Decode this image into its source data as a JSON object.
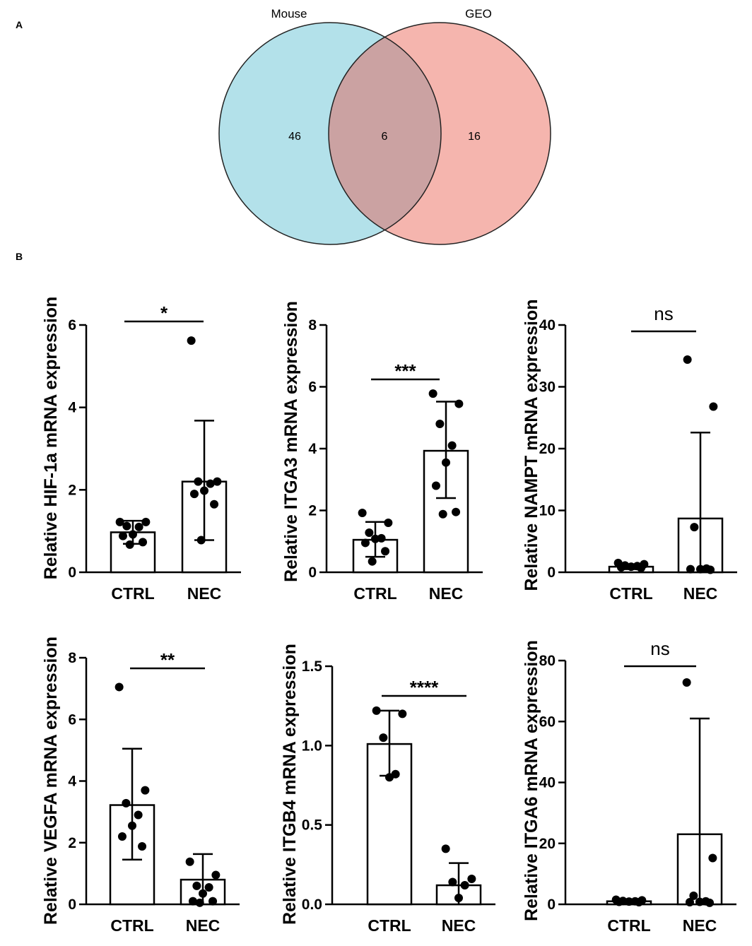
{
  "figure": {
    "panel_a_letter": "A",
    "panel_b_letter": "B"
  },
  "colors": {
    "mouse": "#b3e1ea",
    "geo": "#f5b5ae",
    "overlap": "#cba2a2",
    "ink": "#000000"
  },
  "chart_data": [
    {
      "type": "venn",
      "title": "",
      "sets": [
        {
          "name": "Mouse",
          "only": 46
        },
        {
          "name": "GEO",
          "only": 16
        }
      ],
      "intersection": 6
    },
    {
      "type": "bar",
      "ylabel": "Relative HIF-1a  mRNA expression",
      "categories": [
        "CTRL",
        "NEC"
      ],
      "means": [
        0.97,
        2.2
      ],
      "sd_upper": [
        1.25,
        3.68
      ],
      "sd_lower": [
        0.69,
        0.78
      ],
      "points": [
        [
          1.22,
          1.22,
          1.12,
          1.1,
          0.92,
          0.88,
          0.73,
          0.67
        ],
        [
          5.62,
          2.2,
          2.2,
          2.15,
          1.98,
          1.9,
          1.65,
          0.78
        ]
      ],
      "ylim": [
        0,
        6
      ],
      "yticks": [
        0,
        2,
        4,
        6
      ],
      "significance": "*"
    },
    {
      "type": "bar",
      "ylabel": "Relative ITGA3 mRNA expression",
      "categories": [
        "CTRL",
        "NEC"
      ],
      "means": [
        1.05,
        3.93
      ],
      "sd_upper": [
        1.63,
        5.52
      ],
      "sd_lower": [
        0.5,
        2.4
      ],
      "points": [
        [
          1.92,
          1.6,
          1.28,
          1.1,
          1.08,
          0.95,
          0.68,
          0.35
        ],
        [
          5.78,
          5.45,
          4.8,
          4.1,
          3.55,
          2.8,
          1.95,
          1.88
        ]
      ],
      "ylim": [
        0,
        8
      ],
      "yticks": [
        0,
        2,
        4,
        6,
        8
      ],
      "significance": "***"
    },
    {
      "type": "bar",
      "ylabel": "Relative NAMPT mRNA expression",
      "categories": [
        "CTRL",
        "NEC"
      ],
      "means": [
        0.9,
        8.7
      ],
      "sd_upper": [
        1.3,
        22.6
      ],
      "sd_lower": [
        0.5,
        0
      ],
      "points": [
        [
          1.5,
          1.3,
          1.1,
          1.0,
          0.9,
          0.8,
          0.7
        ],
        [
          34.4,
          26.8,
          7.3,
          0.6,
          0.5,
          0.5,
          0.4
        ]
      ],
      "ylim": [
        0,
        40
      ],
      "yticks": [
        0,
        10,
        20,
        30,
        40
      ],
      "significance": "ns"
    },
    {
      "type": "bar",
      "ylabel": "Relative VEGFA mRNA expression",
      "categories": [
        "CTRL",
        "NEC"
      ],
      "means": [
        3.22,
        0.8
      ],
      "sd_upper": [
        5.05,
        1.63
      ],
      "sd_lower": [
        1.45,
        0
      ],
      "points": [
        [
          7.05,
          3.7,
          3.28,
          2.9,
          2.55,
          2.2,
          1.88
        ],
        [
          1.38,
          0.95,
          0.6,
          0.55,
          0.35,
          0.1,
          0.1,
          0.05
        ]
      ],
      "ylim": [
        0,
        8
      ],
      "yticks": [
        0,
        2,
        4,
        6,
        8
      ],
      "significance": "**"
    },
    {
      "type": "bar",
      "ylabel": "Relative ITGB4 mRNA expression",
      "categories": [
        "CTRL",
        "NEC"
      ],
      "means": [
        1.01,
        0.12
      ],
      "sd_upper": [
        1.22,
        0.26
      ],
      "sd_lower": [
        0.81,
        0
      ],
      "points": [
        [
          1.22,
          1.2,
          1.05,
          0.82,
          0.8
        ],
        [
          0.35,
          0.16,
          0.14,
          0.12,
          0.04
        ]
      ],
      "ylim": [
        0,
        1.5
      ],
      "yticks": [
        "0.0",
        "0.5",
        "1.0",
        "1.5"
      ],
      "significance": "****"
    },
    {
      "type": "bar",
      "ylabel": "Relative ITGA6 mRNA expression",
      "categories": [
        "CTRL",
        "NEC"
      ],
      "means": [
        1.0,
        23.0
      ],
      "sd_upper": [
        1.5,
        61.0
      ],
      "sd_lower": [
        0.5,
        0
      ],
      "points": [
        [
          1.5,
          1.3,
          1.1,
          1.0,
          0.9,
          0.8,
          0.7
        ],
        [
          72.8,
          15.2,
          2.8,
          1.0,
          0.8,
          0.7,
          0.5
        ]
      ],
      "ylim": [
        0,
        80
      ],
      "yticks": [
        0,
        20,
        40,
        60,
        80
      ],
      "significance": "ns"
    }
  ]
}
